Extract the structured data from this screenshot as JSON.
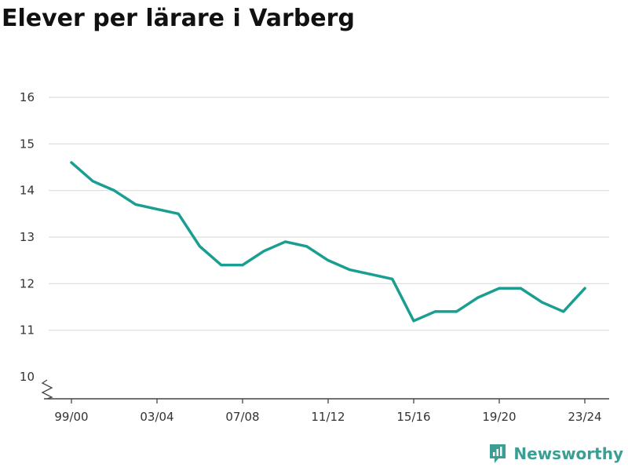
{
  "chart_data": {
    "type": "line",
    "title": "Elever per lärare i Varberg",
    "categories": [
      "99/00",
      "00/01",
      "01/02",
      "02/03",
      "03/04",
      "04/05",
      "05/06",
      "06/07",
      "07/08",
      "08/09",
      "09/10",
      "10/11",
      "11/12",
      "12/13",
      "13/14",
      "14/15",
      "15/16",
      "16/17",
      "17/18",
      "18/19",
      "19/20",
      "20/21",
      "21/22",
      "22/23",
      "23/24"
    ],
    "x_tick_labels": [
      "99/00",
      "03/04",
      "07/08",
      "11/12",
      "15/16",
      "19/20",
      "23/24"
    ],
    "series": [
      {
        "values": [
          14.6,
          14.2,
          14.0,
          13.7,
          13.6,
          13.5,
          12.8,
          12.4,
          12.4,
          12.7,
          12.9,
          12.8,
          12.5,
          12.3,
          12.2,
          12.1,
          11.2,
          11.4,
          11.4,
          11.7,
          11.9,
          11.9,
          11.6,
          11.4,
          11.9
        ]
      }
    ],
    "y_ticks": [
      10,
      11,
      12,
      13,
      14,
      15,
      16
    ],
    "ylim": [
      10,
      16
    ],
    "y_axis_broken": true,
    "grid": true,
    "xlabel": "",
    "ylabel": ""
  },
  "colors": {
    "line": "#1a9e92",
    "grid": "#dcdcdc",
    "axis": "#444444",
    "brand": "#3a9e93"
  },
  "brand": {
    "name": "Newsworthy",
    "icon": "newsworthy-logo-icon"
  }
}
